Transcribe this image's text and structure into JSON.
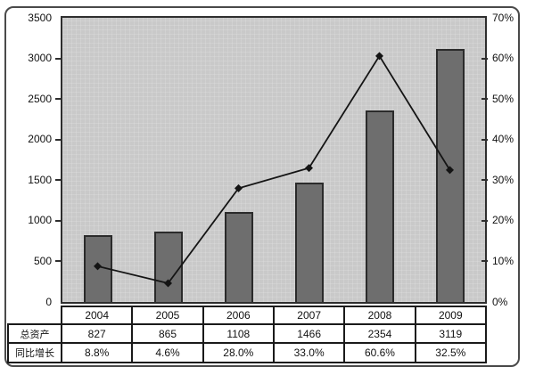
{
  "chart_data": {
    "type": "bar",
    "subtype": "bar+line combo",
    "title": "",
    "categories": [
      "2004",
      "2005",
      "2006",
      "2007",
      "2008",
      "2009"
    ],
    "series": [
      {
        "name": "总资产",
        "chart": "bar",
        "axis": "left",
        "values": [
          827,
          865,
          1108,
          1466,
          2354,
          3119
        ]
      },
      {
        "name": "同比增长",
        "chart": "line",
        "axis": "right",
        "unit": "%",
        "values": [
          8.8,
          4.6,
          28.0,
          33.0,
          60.6,
          32.5
        ]
      }
    ],
    "left_axis": {
      "min": 0,
      "max": 3500,
      "step": 500,
      "tick_labels": [
        "3500",
        "3000",
        "2500",
        "2000",
        "1500",
        "1000",
        "500",
        "0"
      ]
    },
    "right_axis": {
      "min": 0,
      "max": 70,
      "step": 10,
      "tick_labels": [
        "70%",
        "60%",
        "50%",
        "40%",
        "30%",
        "20%",
        "10%",
        "0%"
      ]
    },
    "legend": "none",
    "gridlines": "off"
  },
  "table": {
    "year_row": [
      "2004",
      "2005",
      "2006",
      "2007",
      "2008",
      "2009"
    ],
    "rows": [
      {
        "label": "总资产",
        "cells": [
          "827",
          "865",
          "1108",
          "1466",
          "2354",
          "3119"
        ]
      },
      {
        "label": "同比增长",
        "cells": [
          "8.8%",
          "4.6%",
          "28.0%",
          "33.0%",
          "60.6%",
          "32.5%"
        ]
      }
    ]
  },
  "colors": {
    "frame_border": "#4a4a4a",
    "plot_bg": "#c9c9c9",
    "plot_border": "#2e2e2e",
    "bar_fill": "#6e6e6e",
    "bar_border": "#2b2b2b",
    "line": "#141414",
    "grid": "#1a1a1a",
    "cell_bg": "#ffffff",
    "text": "#111111"
  }
}
